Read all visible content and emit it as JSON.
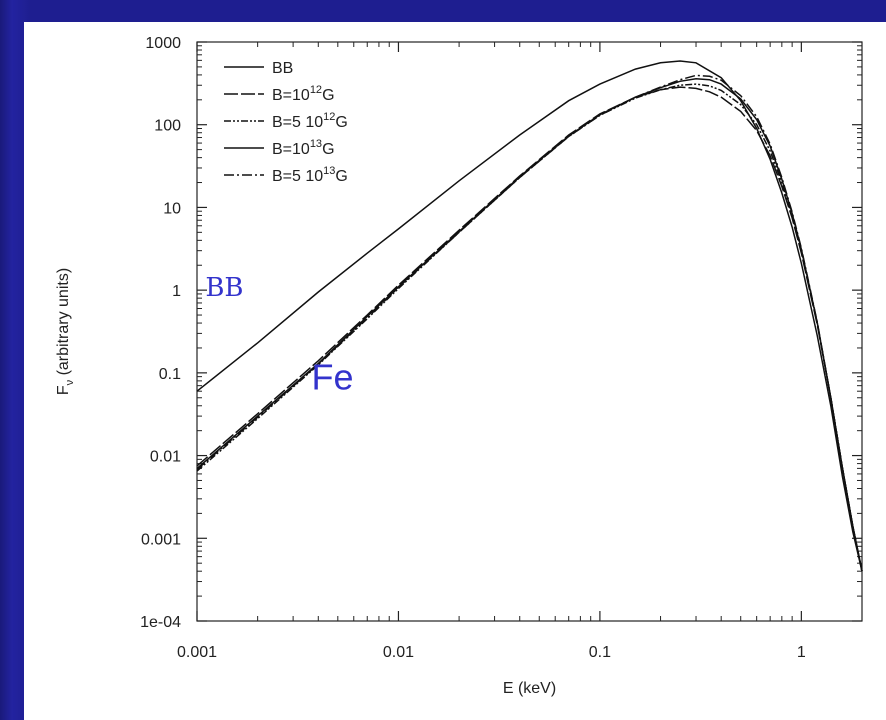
{
  "colors": {
    "background": "#1e1e8c",
    "panel": "#ffffff",
    "annotation": "#3333cc",
    "line": "#111111"
  },
  "chart_data": {
    "type": "line",
    "title": "",
    "xlabel": "E (keV)",
    "ylabel": "F",
    "ylabel_sub": "ν",
    "ylabel_suffix": "(arbitrary units)",
    "xscale": "log",
    "yscale": "log",
    "xlim": [
      0.001,
      2
    ],
    "ylim": [
      0.0001,
      1000
    ],
    "xticks": [
      {
        "value": 0.001,
        "label": "0.001"
      },
      {
        "value": 0.01,
        "label": "0.01"
      },
      {
        "value": 0.1,
        "label": "0.1"
      },
      {
        "value": 1,
        "label": "1"
      }
    ],
    "yticks": [
      {
        "value": 0.0001,
        "label": "1e-04"
      },
      {
        "value": 0.001,
        "label": "0.001"
      },
      {
        "value": 0.01,
        "label": "0.01"
      },
      {
        "value": 0.1,
        "label": "0.1"
      },
      {
        "value": 1,
        "label": "1"
      },
      {
        "value": 10,
        "label": "10"
      },
      {
        "value": 100,
        "label": "100"
      },
      {
        "value": 1000,
        "label": "1000"
      }
    ],
    "legend_position": "top-left",
    "series": [
      {
        "name": "BB",
        "legend_base": "BB",
        "legend_exp": "",
        "legend_suffix": "",
        "dash": "solid",
        "x": [
          0.001,
          0.002,
          0.004,
          0.007,
          0.01,
          0.02,
          0.04,
          0.07,
          0.1,
          0.15,
          0.2,
          0.25,
          0.3,
          0.4,
          0.5,
          0.6,
          0.7,
          0.8,
          0.9,
          1.0,
          1.2,
          1.4,
          1.6,
          1.8,
          2.0
        ],
        "y": [
          0.06,
          0.23,
          0.95,
          2.8,
          5.5,
          21,
          75,
          195,
          310,
          470,
          560,
          590,
          560,
          370,
          195,
          90,
          38,
          15,
          5.8,
          2.1,
          0.28,
          0.04,
          0.0055,
          0.0012,
          0.0004
        ]
      },
      {
        "name": "B=10^12G",
        "legend_base": "B=10",
        "legend_exp": "12",
        "legend_suffix": "G",
        "dash": "long-dash",
        "x": [
          0.001,
          0.002,
          0.004,
          0.007,
          0.01,
          0.02,
          0.04,
          0.07,
          0.1,
          0.15,
          0.2,
          0.25,
          0.3,
          0.35,
          0.4,
          0.5,
          0.6,
          0.7,
          0.8,
          0.9,
          1.0,
          1.2,
          1.4,
          1.6,
          1.8,
          2.0
        ],
        "y": [
          0.0075,
          0.032,
          0.14,
          0.5,
          1.15,
          5.3,
          24,
          75,
          135,
          215,
          265,
          285,
          275,
          250,
          215,
          145,
          85,
          42,
          18,
          7.5,
          2.8,
          0.38,
          0.05,
          0.007,
          0.0014,
          0.0004
        ]
      },
      {
        "name": "B=5 10^12G",
        "legend_base": "B=5 10",
        "legend_exp": "12",
        "legend_suffix": "G",
        "dash": "dash-dot-dot",
        "x": [
          0.001,
          0.002,
          0.004,
          0.007,
          0.01,
          0.02,
          0.04,
          0.07,
          0.1,
          0.15,
          0.2,
          0.25,
          0.3,
          0.35,
          0.4,
          0.5,
          0.6,
          0.7,
          0.8,
          0.9,
          1.0,
          1.2,
          1.4,
          1.6,
          1.8,
          2.0
        ],
        "y": [
          0.0065,
          0.028,
          0.125,
          0.45,
          1.05,
          5.0,
          23,
          72,
          130,
          210,
          265,
          300,
          310,
          295,
          260,
          175,
          100,
          48,
          20,
          8,
          3,
          0.4,
          0.05,
          0.007,
          0.0014,
          0.0004
        ]
      },
      {
        "name": "B=10^13G",
        "legend_base": "B=10",
        "legend_exp": "13",
        "legend_suffix": "G",
        "dash": "solid",
        "x": [
          0.001,
          0.002,
          0.004,
          0.007,
          0.01,
          0.02,
          0.04,
          0.07,
          0.1,
          0.15,
          0.2,
          0.25,
          0.3,
          0.35,
          0.4,
          0.5,
          0.6,
          0.7,
          0.8,
          0.9,
          1.0,
          1.2,
          1.4,
          1.6,
          1.8,
          2.0
        ],
        "y": [
          0.007,
          0.03,
          0.13,
          0.48,
          1.1,
          5.1,
          23.5,
          73,
          132,
          215,
          280,
          335,
          360,
          350,
          310,
          205,
          115,
          55,
          22,
          8.5,
          3.1,
          0.4,
          0.05,
          0.007,
          0.0014,
          0.0004
        ]
      },
      {
        "name": "B=5 10^13G",
        "legend_base": "B=5 10",
        "legend_exp": "13",
        "legend_suffix": "G",
        "dash": "dash-dot",
        "x": [
          0.001,
          0.002,
          0.004,
          0.007,
          0.01,
          0.02,
          0.04,
          0.07,
          0.1,
          0.15,
          0.2,
          0.25,
          0.3,
          0.35,
          0.4,
          0.5,
          0.6,
          0.7,
          0.8,
          0.9,
          1.0,
          1.2,
          1.4,
          1.6,
          1.8,
          2.0
        ],
        "y": [
          0.0068,
          0.029,
          0.128,
          0.46,
          1.08,
          5.0,
          23,
          72,
          130,
          215,
          285,
          350,
          395,
          385,
          345,
          225,
          125,
          58,
          23,
          8.8,
          3.2,
          0.41,
          0.05,
          0.007,
          0.0014,
          0.0004
        ]
      }
    ],
    "annotations": [
      {
        "text": "BB",
        "x": 0.0011,
        "y": 0.85,
        "font": "serif"
      },
      {
        "text": "Fe",
        "x": 0.0037,
        "y": 0.063,
        "font": "sans"
      }
    ]
  }
}
